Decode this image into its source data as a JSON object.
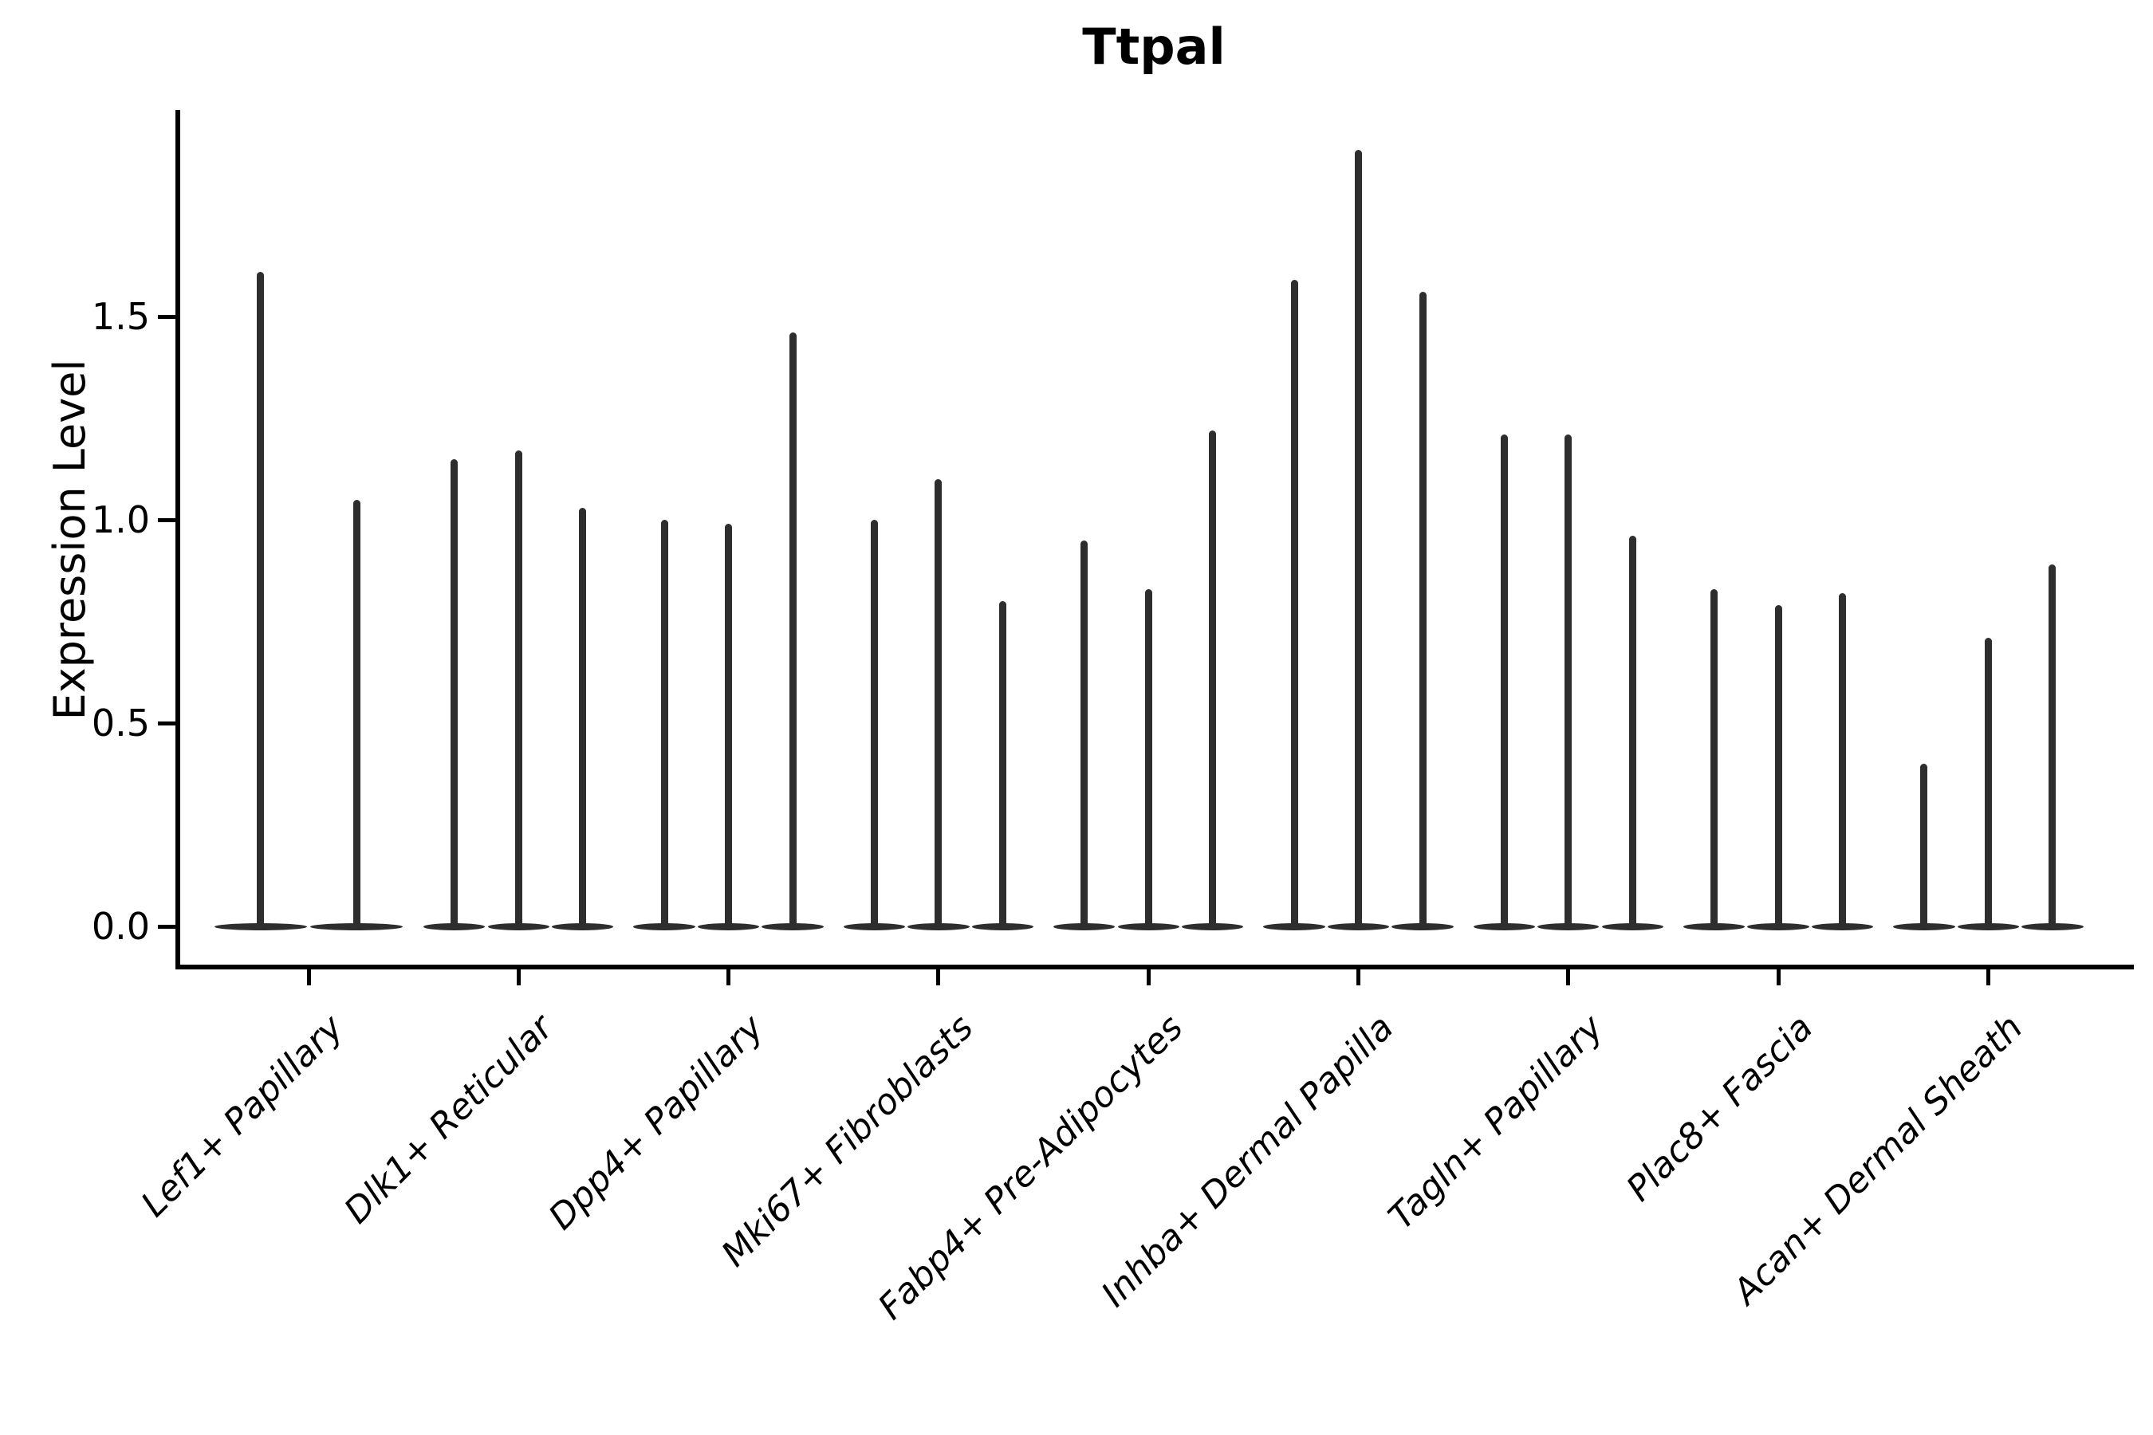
{
  "title": "Ttpal",
  "y_axis": {
    "label": "Expression Level",
    "tick_labels": [
      "0.0",
      "0.5",
      "1.0",
      "1.5"
    ],
    "tick_values": [
      0.0,
      0.5,
      1.0,
      1.5
    ]
  },
  "colors": {
    "violin": "#2e2e2e",
    "axis": "#000000",
    "background": "#ffffff"
  },
  "chart_data": {
    "type": "violin",
    "title": "Ttpal",
    "xlabel": "",
    "ylabel": "Expression Level",
    "ylim": [
      0,
      2.0
    ],
    "grid": false,
    "legend": "none",
    "description": "Stacked violin plot of Ttpal expression; each cell-type group contains 2-3 narrow spike-shaped violins with wide flat bases at 0. Values below are the maximum expression (spike top) of each violin, left to right.",
    "groups": [
      {
        "label": "Lef1+ Papillary",
        "violin_max": [
          1.61,
          1.05
        ]
      },
      {
        "label": "Dlk1+ Reticular",
        "violin_max": [
          1.15,
          1.17,
          1.03
        ]
      },
      {
        "label": "Dpp4+ Papillary",
        "violin_max": [
          1.0,
          0.99,
          1.46
        ]
      },
      {
        "label": "Mki67+ Fibroblasts",
        "violin_max": [
          1.0,
          1.1,
          0.8
        ]
      },
      {
        "label": "Fabp4+ Pre-Adipocytes",
        "violin_max": [
          0.95,
          0.83,
          1.22
        ]
      },
      {
        "label": "Inhba+ Dermal Papilla",
        "violin_max": [
          1.59,
          1.91,
          1.56
        ]
      },
      {
        "label": "Tagln+ Papillary",
        "violin_max": [
          1.21,
          1.21,
          0.96
        ]
      },
      {
        "label": "Plac8+ Fascia",
        "violin_max": [
          0.83,
          0.79,
          0.82
        ]
      },
      {
        "label": "Acan+ Dermal Sheath",
        "violin_max": [
          0.4,
          0.71,
          0.89
        ]
      }
    ],
    "violin_min": 0.0
  }
}
